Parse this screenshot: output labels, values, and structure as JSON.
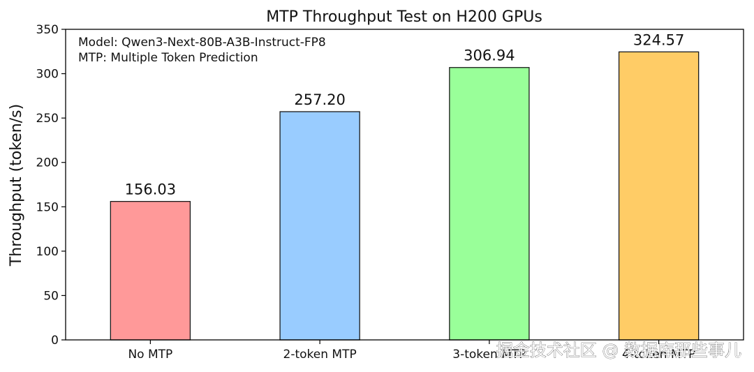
{
  "chart_data": {
    "type": "bar",
    "title": "MTP Throughput Test on H200 GPUs",
    "xlabel": "",
    "ylabel": "Throughput (token/s)",
    "ylim": [
      0,
      350
    ],
    "yticks": [
      0,
      50,
      100,
      150,
      200,
      250,
      300,
      350
    ],
    "grid": false,
    "categories": [
      "No MTP",
      "2-token MTP",
      "3-token MTP",
      "4-token MTP"
    ],
    "values": [
      156.03,
      257.2,
      306.94,
      324.57
    ],
    "value_labels": [
      "156.03",
      "257.20",
      "306.94",
      "324.57"
    ],
    "colors": [
      "#ff9999",
      "#99ccff",
      "#99ff99",
      "#ffcc66"
    ],
    "annotations": [
      "Model: Qwen3-Next-80B-A3B-Instruct-FP8",
      "MTP: Multiple Token Prediction"
    ]
  },
  "watermark": "掘金技术社区 @ 数据库那些事儿"
}
